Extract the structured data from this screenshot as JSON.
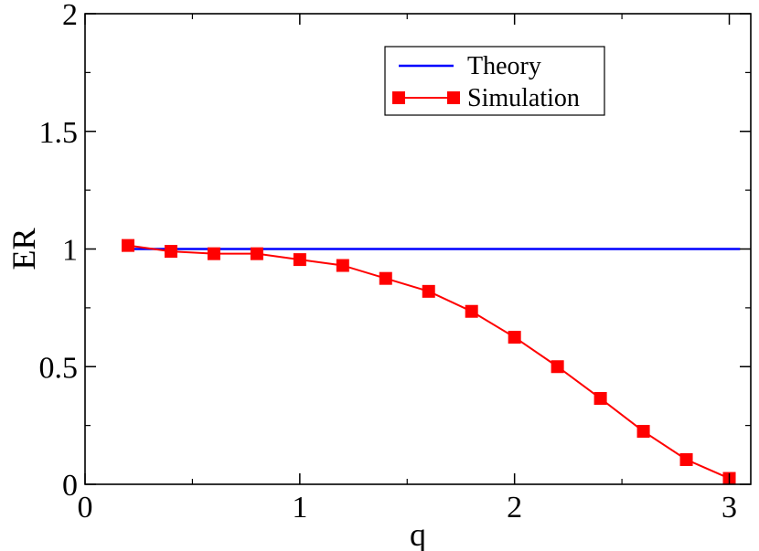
{
  "chart_data": {
    "type": "line",
    "title": "",
    "xlabel": "q",
    "ylabel": "ER",
    "xlim": [
      0,
      3.1
    ],
    "ylim": [
      0,
      2
    ],
    "xticks": [
      0,
      1,
      2,
      3
    ],
    "yticks": [
      0,
      0.5,
      1,
      1.5,
      2
    ],
    "xtick_labels": [
      "0",
      "1",
      "2",
      "3"
    ],
    "ytick_labels": [
      "0",
      "0.5",
      "1",
      "1.5",
      "2"
    ],
    "grid": false,
    "legend_position": "top-right",
    "series": [
      {
        "name": "Theory",
        "color": "#0000ff",
        "marker": "none",
        "x": [
          0.2,
          3.05
        ],
        "y": [
          1.0,
          1.0
        ]
      },
      {
        "name": "Simulation",
        "color": "#ff0000",
        "marker": "square",
        "x": [
          0.2,
          0.4,
          0.6,
          0.8,
          1.0,
          1.2,
          1.4,
          1.6,
          1.8,
          2.0,
          2.2,
          2.4,
          2.6,
          2.8,
          3.0
        ],
        "y": [
          1.015,
          0.99,
          0.98,
          0.98,
          0.955,
          0.93,
          0.875,
          0.82,
          0.735,
          0.625,
          0.5,
          0.365,
          0.225,
          0.105,
          0.025
        ]
      }
    ]
  }
}
